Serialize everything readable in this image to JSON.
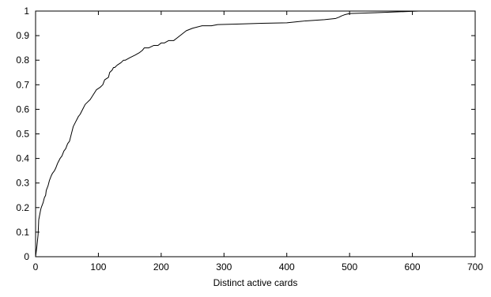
{
  "chart_data": {
    "type": "line",
    "title": "",
    "xlabel": "Distinct active cards",
    "ylabel": "",
    "xlim": [
      0,
      700
    ],
    "ylim": [
      0,
      1
    ],
    "x_ticks": [
      "0",
      "100",
      "200",
      "300",
      "400",
      "500",
      "600",
      "700"
    ],
    "y_ticks": [
      "0",
      "0.1",
      "0.2",
      "0.3",
      "0.4",
      "0.5",
      "0.6",
      "0.7",
      "0.8",
      "0.9",
      "1"
    ],
    "grid": false,
    "legend": "none",
    "series": [
      {
        "color": "#000000",
        "x": [
          0,
          2,
          4,
          5,
          8,
          9,
          12,
          14,
          16,
          17,
          20,
          22,
          25,
          27,
          30,
          32,
          35,
          37,
          39,
          42,
          45,
          48,
          51,
          54,
          57,
          60,
          62,
          64,
          66,
          68,
          71,
          75,
          79,
          83,
          87,
          92,
          97,
          103,
          107,
          110,
          116,
          118,
          122,
          124,
          126,
          130,
          136,
          140,
          143,
          150,
          158,
          165,
          170,
          173,
          176,
          180,
          188,
          195,
          200,
          205,
          212,
          220,
          225,
          230,
          235,
          240,
          250,
          265,
          280,
          290,
          320,
          360,
          400,
          430,
          460,
          478,
          483,
          487,
          492,
          500,
          540,
          580,
          610
        ],
        "y": [
          0,
          0.04,
          0.09,
          0.15,
          0.19,
          0.2,
          0.22,
          0.24,
          0.25,
          0.27,
          0.29,
          0.31,
          0.33,
          0.34,
          0.35,
          0.36,
          0.38,
          0.39,
          0.4,
          0.41,
          0.43,
          0.44,
          0.46,
          0.47,
          0.5,
          0.53,
          0.54,
          0.55,
          0.56,
          0.57,
          0.58,
          0.6,
          0.62,
          0.63,
          0.64,
          0.66,
          0.68,
          0.69,
          0.7,
          0.72,
          0.73,
          0.75,
          0.76,
          0.77,
          0.77,
          0.78,
          0.79,
          0.8,
          0.8,
          0.81,
          0.82,
          0.83,
          0.84,
          0.85,
          0.85,
          0.85,
          0.86,
          0.86,
          0.87,
          0.87,
          0.88,
          0.88,
          0.89,
          0.9,
          0.91,
          0.92,
          0.93,
          0.94,
          0.94,
          0.945,
          0.947,
          0.95,
          0.952,
          0.96,
          0.965,
          0.97,
          0.975,
          0.98,
          0.985,
          0.99,
          0.993,
          0.997,
          1.0
        ]
      }
    ]
  }
}
